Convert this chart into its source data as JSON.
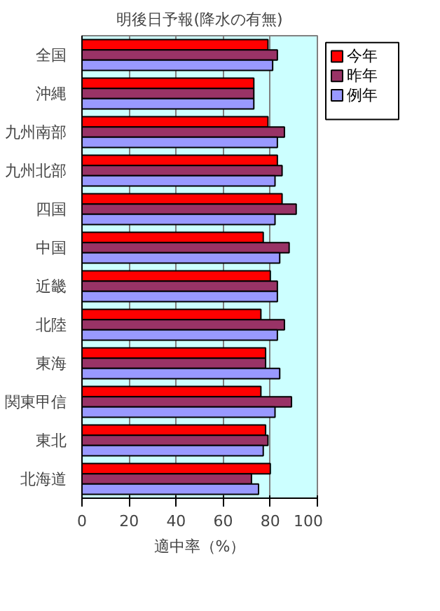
{
  "chart_data": {
    "type": "bar",
    "orientation": "horizontal",
    "title": "明後日予報(降水の有無)",
    "xlabel": "適中率（%）",
    "categories": [
      "全国",
      "沖縄",
      "九州南部",
      "九州北部",
      "四国",
      "中国",
      "近畿",
      "北陸",
      "東海",
      "関東甲信",
      "東北",
      "北海道"
    ],
    "series": [
      {
        "name": "今年",
        "color": "#ff0000",
        "values": [
          79,
          73,
          79,
          83,
          85,
          77,
          80,
          76,
          78,
          76,
          78,
          80
        ]
      },
      {
        "name": "昨年",
        "color": "#993366",
        "values": [
          83,
          73,
          86,
          85,
          91,
          88,
          83,
          86,
          78,
          89,
          79,
          72
        ]
      },
      {
        "name": "例年",
        "color": "#9999ff",
        "values": [
          81,
          73,
          83,
          82,
          82,
          84,
          83,
          83,
          84,
          82,
          77,
          75
        ]
      }
    ],
    "xlim": [
      0,
      100
    ],
    "xticks": [
      0,
      20,
      40,
      60,
      80,
      100
    ],
    "grid": "x",
    "legend": "top right"
  }
}
